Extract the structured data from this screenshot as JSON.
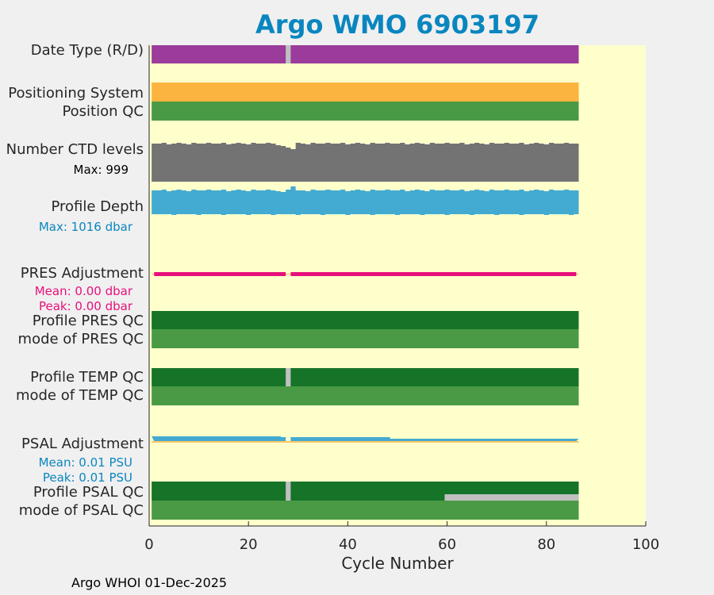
{
  "chart_data": {
    "type": "bar",
    "title": "Argo WMO 6903197",
    "xlabel": "Cycle Number",
    "xlim": [
      0,
      100
    ],
    "xticks": [
      0,
      20,
      40,
      60,
      80,
      100
    ],
    "footer": "Argo WHOI 01-Dec-2025",
    "colors": {
      "background": "#ffffcc",
      "title": "#0a86bf",
      "date_type": "#9b3b9b",
      "positioning_system": "#fbb440",
      "qc_good_dark": "#167428",
      "qc_good": "#4a9a45",
      "qc_missing": "#c0c0c0",
      "ctd_levels": "#737373",
      "profile_depth": "#43abd1",
      "pres_adjustment": "#e70f7b",
      "psal_adjustment": "#43abd1",
      "zero_line": "#fbb440"
    },
    "rows": [
      {
        "label": "Date Type (R/D)",
        "cycles": [
          1,
          86
        ],
        "missing_cycles": [
          28
        ]
      },
      {
        "label": "Positioning System",
        "cycles": [
          1,
          86
        ]
      },
      {
        "label": "Position QC",
        "cycles": [
          1,
          86
        ]
      },
      {
        "label": "Number CTD levels",
        "cycles": [
          1,
          86
        ],
        "annotation": "Max: 999",
        "annotation_color": "#000000"
      },
      {
        "label": "Profile Depth",
        "cycles": [
          1,
          86
        ],
        "annotation": "Max: 1016 dbar",
        "annotation_color": "#0a86bf"
      },
      {
        "label": "PRES Adjustment",
        "cycles": [
          1,
          86
        ],
        "missing_cycles": [
          28
        ],
        "annotations": [
          "Mean: 0.00 dbar",
          "Peak: 0.00 dbar"
        ],
        "annotation_color": "#e70f7b"
      },
      {
        "label": "Profile PRES QC",
        "cycles": [
          1,
          86
        ]
      },
      {
        "label": "mode of PRES QC",
        "cycles": [
          1,
          86
        ]
      },
      {
        "label": "Profile TEMP QC",
        "cycles": [
          1,
          86
        ],
        "missing_cycles": [
          28
        ]
      },
      {
        "label": "mode of TEMP QC",
        "cycles": [
          1,
          86
        ]
      },
      {
        "label": "PSAL Adjustment",
        "cycles": [
          1,
          86
        ],
        "missing_cycles": [
          28
        ],
        "annotations": [
          "Mean: 0.01 PSU",
          "Peak: 0.01 PSU"
        ],
        "annotation_color": "#0a86bf"
      },
      {
        "label": "Profile PSAL QC",
        "cycles": [
          1,
          86
        ],
        "missing_cycles": [
          28
        ],
        "grey_from_cycle": 60
      },
      {
        "label": "mode of PSAL QC",
        "cycles": [
          1,
          86
        ]
      }
    ]
  }
}
